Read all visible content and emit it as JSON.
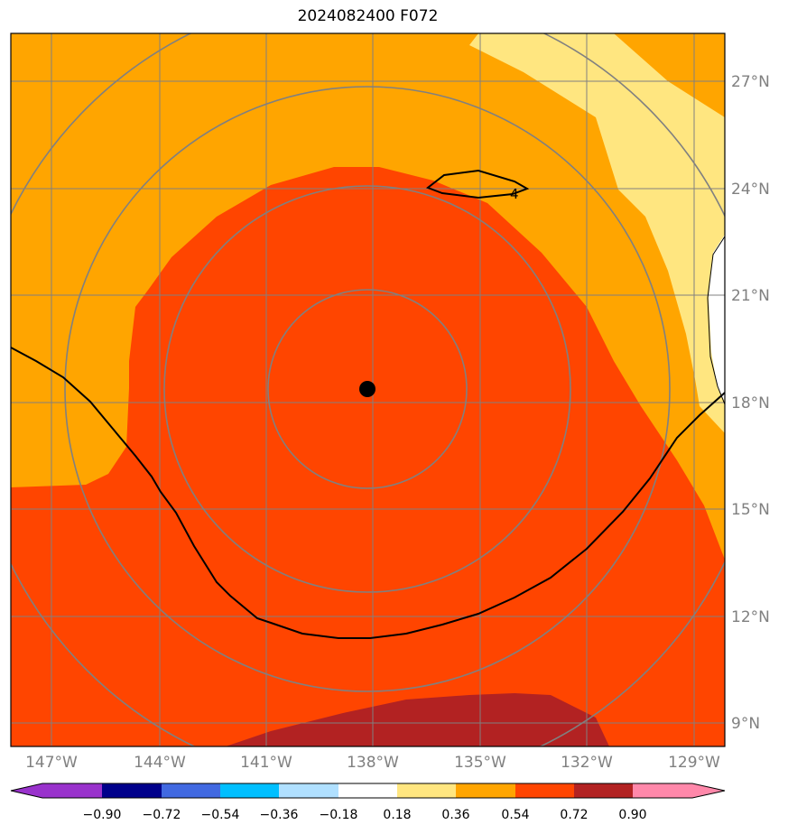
{
  "title": "2024082400 F072",
  "map": {
    "lon_labels": [
      "147°W",
      "144°W",
      "141°W",
      "138°W",
      "135°W",
      "132°W",
      "129°W"
    ],
    "lat_labels": [
      "27°N",
      "24°N",
      "21°N",
      "18°N",
      "15°N",
      "12°N",
      "9°N"
    ],
    "storm_center": {
      "lat": 18.3,
      "lon": -137.9
    },
    "contour_label": "4"
  },
  "colorbar": {
    "levels": [
      "−0.90",
      "−0.72",
      "−0.54",
      "−0.36",
      "−0.18",
      "0.18",
      "0.36",
      "0.54",
      "0.72",
      "0.90"
    ],
    "colors": [
      "#9932cc",
      "#00008b",
      "#4169e1",
      "#00bfff",
      "#b0e0ff",
      "#ffffff",
      "#ffe680",
      "#ffa500",
      "#ff4500",
      "#b22222",
      "#ff88aa"
    ]
  }
}
